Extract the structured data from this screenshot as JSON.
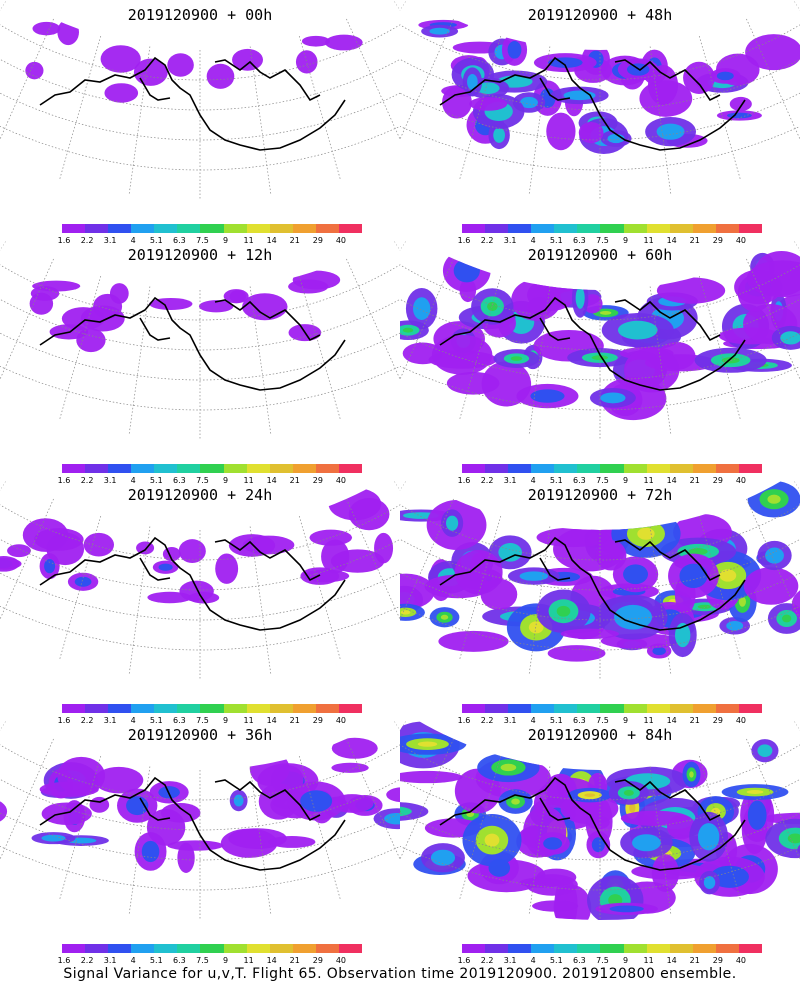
{
  "panels": [
    {
      "title": "2019120900 + 00h",
      "lead": "00h",
      "coverage": 0.08
    },
    {
      "title": "2019120900 + 48h",
      "lead": "48h",
      "coverage": 0.55
    },
    {
      "title": "2019120900 + 12h",
      "lead": "12h",
      "coverage": 0.15
    },
    {
      "title": "2019120900 + 60h",
      "lead": "60h",
      "coverage": 0.7
    },
    {
      "title": "2019120900 + 24h",
      "lead": "24h",
      "coverage": 0.3
    },
    {
      "title": "2019120900 + 72h",
      "lead": "72h",
      "coverage": 0.85
    },
    {
      "title": "2019120900 + 36h",
      "lead": "36h",
      "coverage": 0.45
    },
    {
      "title": "2019120900 + 84h",
      "lead": "84h",
      "coverage": 0.95
    }
  ],
  "colorbar": {
    "labels": [
      "1.6",
      "2.2",
      "3.1",
      "4",
      "5.1",
      "6.3",
      "7.5",
      "9",
      "11",
      "14",
      "21",
      "29",
      "40"
    ],
    "colors": [
      "#a020f0",
      "#7030e8",
      "#3050f0",
      "#20a0f0",
      "#20c0d0",
      "#20d0a0",
      "#30d050",
      "#a0e030",
      "#e0e030",
      "#e0c030",
      "#f0a030",
      "#f07040",
      "#f03060"
    ]
  },
  "caption": "Signal Variance for u,v,T. Flight 65. Observation time 2019120900. 2019120800 ensemble."
}
